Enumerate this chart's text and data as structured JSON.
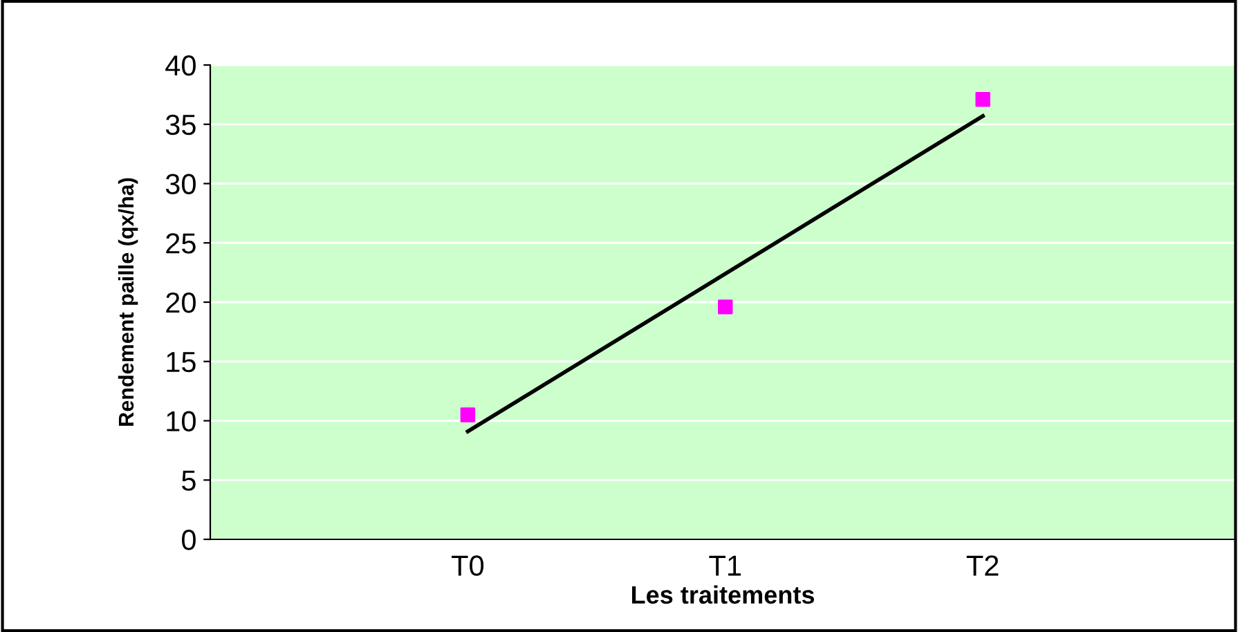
{
  "chart_data": {
    "type": "scatter",
    "xlabel": "Les traitements",
    "ylabel": "Rendement paille (qx/ha)",
    "categories": [
      "T0",
      "T1",
      "T2"
    ],
    "series": [
      {
        "color": "#ff00ff",
        "marker": "square",
        "values": [
          10.5,
          19.6,
          37.1
        ]
      },
      {
        "type": "line",
        "color": "#000000",
        "marker": "none",
        "values": [
          9.1,
          22.4,
          35.7
        ]
      }
    ],
    "ylim": [
      0,
      40
    ],
    "yticks": [
      0,
      5,
      10,
      15,
      20,
      25,
      30,
      35,
      40
    ],
    "grid": "y",
    "legend": false
  }
}
